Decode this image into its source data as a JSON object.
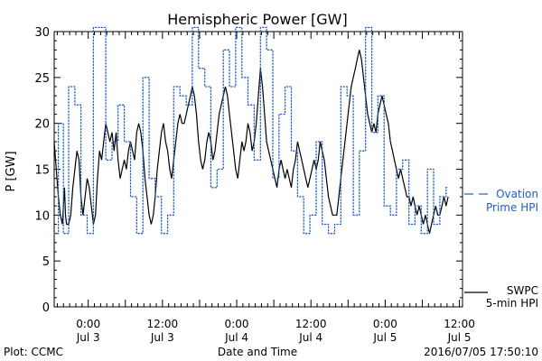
{
  "chart_data": {
    "type": "line",
    "title": "Hemispheric Power [GW]",
    "ylabel": "P [GW]",
    "xlabel": "Date and Time",
    "ylim": [
      0,
      30
    ],
    "xlim": [
      -0.2292,
      2.5208
    ],
    "x_unit": "days from 2016-07-03 00:00",
    "yticks": [
      0,
      5,
      10,
      15,
      20,
      25,
      30
    ],
    "xticks": [
      {
        "x": 0.0,
        "top": "0:00",
        "bottom": "Jul 3"
      },
      {
        "x": 0.5,
        "top": "12:00",
        "bottom": "Jul 3"
      },
      {
        "x": 1.0,
        "top": "0:00",
        "bottom": "Jul 4"
      },
      {
        "x": 1.5,
        "top": "12:00",
        "bottom": "Jul 4"
      },
      {
        "x": 2.0,
        "top": "0:00",
        "bottom": "Jul 5"
      },
      {
        "x": 2.5,
        "top": "12:00",
        "bottom": "Jul 5"
      }
    ],
    "grid": false,
    "series": [
      {
        "name_lines": [
          "SWPC",
          "5-min HPI"
        ],
        "color": "#000000",
        "style": "solid",
        "points": [
          [
            -0.229,
            18
          ],
          [
            -0.215,
            15
          ],
          [
            -0.201,
            12
          ],
          [
            -0.188,
            10
          ],
          [
            -0.174,
            9
          ],
          [
            -0.167,
            11
          ],
          [
            -0.16,
            13
          ],
          [
            -0.153,
            10
          ],
          [
            -0.146,
            9
          ],
          [
            -0.132,
            9
          ],
          [
            -0.118,
            10
          ],
          [
            -0.104,
            13
          ],
          [
            -0.09,
            15
          ],
          [
            -0.076,
            17
          ],
          [
            -0.062,
            16
          ],
          [
            -0.049,
            12
          ],
          [
            -0.035,
            10
          ],
          [
            -0.021,
            12
          ],
          [
            -0.007,
            14
          ],
          [
            0.007,
            13
          ],
          [
            0.021,
            11
          ],
          [
            0.035,
            9
          ],
          [
            0.049,
            10
          ],
          [
            0.062,
            14
          ],
          [
            0.076,
            17
          ],
          [
            0.09,
            16
          ],
          [
            0.104,
            18
          ],
          [
            0.118,
            20
          ],
          [
            0.132,
            19
          ],
          [
            0.146,
            18
          ],
          [
            0.16,
            19
          ],
          [
            0.174,
            17
          ],
          [
            0.188,
            19
          ],
          [
            0.201,
            16
          ],
          [
            0.215,
            14
          ],
          [
            0.229,
            15
          ],
          [
            0.243,
            16
          ],
          [
            0.257,
            15
          ],
          [
            0.271,
            17
          ],
          [
            0.285,
            18
          ],
          [
            0.299,
            17
          ],
          [
            0.312,
            16
          ],
          [
            0.326,
            19
          ],
          [
            0.34,
            20
          ],
          [
            0.354,
            19
          ],
          [
            0.368,
            17
          ],
          [
            0.382,
            14
          ],
          [
            0.396,
            12
          ],
          [
            0.41,
            10
          ],
          [
            0.424,
            9
          ],
          [
            0.438,
            10
          ],
          [
            0.451,
            12
          ],
          [
            0.465,
            15
          ],
          [
            0.479,
            17
          ],
          [
            0.493,
            19
          ],
          [
            0.507,
            20
          ],
          [
            0.521,
            18
          ],
          [
            0.535,
            17
          ],
          [
            0.549,
            15
          ],
          [
            0.562,
            14
          ],
          [
            0.576,
            16
          ],
          [
            0.59,
            18
          ],
          [
            0.604,
            20
          ],
          [
            0.618,
            21
          ],
          [
            0.632,
            20
          ],
          [
            0.646,
            20
          ],
          [
            0.66,
            21
          ],
          [
            0.674,
            22
          ],
          [
            0.688,
            23
          ],
          [
            0.701,
            24
          ],
          [
            0.715,
            23
          ],
          [
            0.729,
            21
          ],
          [
            0.743,
            18
          ],
          [
            0.757,
            16
          ],
          [
            0.771,
            15
          ],
          [
            0.785,
            16
          ],
          [
            0.799,
            18
          ],
          [
            0.812,
            19
          ],
          [
            0.826,
            18
          ],
          [
            0.84,
            16
          ],
          [
            0.854,
            17
          ],
          [
            0.868,
            19
          ],
          [
            0.882,
            21
          ],
          [
            0.896,
            22
          ],
          [
            0.91,
            23
          ],
          [
            0.924,
            24
          ],
          [
            0.938,
            23
          ],
          [
            0.951,
            21
          ],
          [
            0.965,
            19
          ],
          [
            0.979,
            17
          ],
          [
            0.993,
            15
          ],
          [
            1.007,
            14
          ],
          [
            1.021,
            16
          ],
          [
            1.035,
            18
          ],
          [
            1.049,
            17
          ],
          [
            1.062,
            18
          ],
          [
            1.076,
            20
          ],
          [
            1.09,
            19
          ],
          [
            1.104,
            17
          ],
          [
            1.118,
            18
          ],
          [
            1.132,
            20
          ],
          [
            1.146,
            23
          ],
          [
            1.16,
            26
          ],
          [
            1.174,
            24
          ],
          [
            1.188,
            21
          ],
          [
            1.201,
            18
          ],
          [
            1.215,
            17
          ],
          [
            1.229,
            16
          ],
          [
            1.243,
            15
          ],
          [
            1.257,
            14
          ],
          [
            1.271,
            13
          ],
          [
            1.285,
            15
          ],
          [
            1.299,
            16
          ],
          [
            1.312,
            15
          ],
          [
            1.326,
            14
          ],
          [
            1.34,
            15
          ],
          [
            1.354,
            14
          ],
          [
            1.368,
            13
          ],
          [
            1.382,
            15
          ],
          [
            1.396,
            16
          ],
          [
            1.41,
            18
          ],
          [
            1.424,
            17
          ],
          [
            1.438,
            16
          ],
          [
            1.451,
            15
          ],
          [
            1.465,
            14
          ],
          [
            1.479,
            13
          ],
          [
            1.493,
            14
          ],
          [
            1.507,
            15
          ],
          [
            1.521,
            16
          ],
          [
            1.535,
            15
          ],
          [
            1.549,
            16
          ],
          [
            1.562,
            18
          ],
          [
            1.576,
            17
          ],
          [
            1.59,
            16
          ],
          [
            1.604,
            14
          ],
          [
            1.618,
            12
          ],
          [
            1.632,
            11
          ],
          [
            1.646,
            10
          ],
          [
            1.66,
            10
          ],
          [
            1.674,
            10
          ],
          [
            1.688,
            12
          ],
          [
            1.701,
            14
          ],
          [
            1.715,
            16
          ],
          [
            1.729,
            18
          ],
          [
            1.743,
            20
          ],
          [
            1.757,
            22
          ],
          [
            1.771,
            24
          ],
          [
            1.785,
            25
          ],
          [
            1.799,
            26
          ],
          [
            1.812,
            27
          ],
          [
            1.826,
            28
          ],
          [
            1.84,
            27
          ],
          [
            1.854,
            25
          ],
          [
            1.868,
            23
          ],
          [
            1.882,
            21
          ],
          [
            1.896,
            20
          ],
          [
            1.91,
            19
          ],
          [
            1.924,
            20
          ],
          [
            1.938,
            19
          ],
          [
            1.951,
            21
          ],
          [
            1.965,
            22
          ],
          [
            1.979,
            23
          ],
          [
            1.993,
            22
          ],
          [
            2.007,
            21
          ],
          [
            2.021,
            20
          ],
          [
            2.035,
            18
          ],
          [
            2.049,
            17
          ],
          [
            2.062,
            16
          ],
          [
            2.076,
            15
          ],
          [
            2.09,
            14
          ],
          [
            2.104,
            15
          ],
          [
            2.118,
            14
          ],
          [
            2.132,
            13
          ],
          [
            2.146,
            12
          ],
          [
            2.16,
            12
          ],
          [
            2.174,
            11
          ],
          [
            2.188,
            12
          ],
          [
            2.201,
            11
          ],
          [
            2.215,
            10
          ],
          [
            2.229,
            11
          ],
          [
            2.243,
            10
          ],
          [
            2.257,
            9
          ],
          [
            2.271,
            10
          ],
          [
            2.285,
            9
          ],
          [
            2.299,
            8
          ],
          [
            2.312,
            9
          ],
          [
            2.326,
            10
          ],
          [
            2.34,
            11
          ],
          [
            2.354,
            10
          ],
          [
            2.368,
            10
          ],
          [
            2.382,
            11
          ],
          [
            2.396,
            12
          ],
          [
            2.41,
            11
          ],
          [
            2.424,
            12
          ]
        ]
      },
      {
        "name_lines": [
          "Ovation",
          "Prime HPI"
        ],
        "color": "#1f5fbf",
        "style": "dotted-step",
        "points": [
          [
            -0.229,
            8
          ],
          [
            -0.201,
            20
          ],
          [
            -0.167,
            8
          ],
          [
            -0.132,
            24
          ],
          [
            -0.09,
            22
          ],
          [
            -0.049,
            10
          ],
          [
            -0.007,
            8
          ],
          [
            0.035,
            30.5
          ],
          [
            0.076,
            30.5
          ],
          [
            0.118,
            16
          ],
          [
            0.16,
            18
          ],
          [
            0.201,
            22
          ],
          [
            0.243,
            18
          ],
          [
            0.285,
            12
          ],
          [
            0.326,
            8
          ],
          [
            0.368,
            25
          ],
          [
            0.41,
            14
          ],
          [
            0.451,
            12
          ],
          [
            0.493,
            8
          ],
          [
            0.535,
            10
          ],
          [
            0.576,
            24
          ],
          [
            0.618,
            23
          ],
          [
            0.66,
            22
          ],
          [
            0.701,
            30.5
          ],
          [
            0.743,
            26
          ],
          [
            0.785,
            24
          ],
          [
            0.826,
            13
          ],
          [
            0.868,
            15
          ],
          [
            0.91,
            28
          ],
          [
            0.951,
            24
          ],
          [
            0.993,
            30.5
          ],
          [
            1.035,
            25
          ],
          [
            1.076,
            22
          ],
          [
            1.118,
            16
          ],
          [
            1.16,
            30.5
          ],
          [
            1.201,
            28
          ],
          [
            1.243,
            14
          ],
          [
            1.285,
            21
          ],
          [
            1.326,
            24
          ],
          [
            1.368,
            17
          ],
          [
            1.41,
            12
          ],
          [
            1.451,
            8
          ],
          [
            1.493,
            10
          ],
          [
            1.535,
            18
          ],
          [
            1.576,
            9
          ],
          [
            1.618,
            8
          ],
          [
            1.66,
            9
          ],
          [
            1.701,
            24
          ],
          [
            1.743,
            23
          ],
          [
            1.785,
            10
          ],
          [
            1.826,
            17
          ],
          [
            1.868,
            30.5
          ],
          [
            1.91,
            19
          ],
          [
            1.951,
            23
          ],
          [
            1.993,
            11
          ],
          [
            2.035,
            10
          ],
          [
            2.076,
            15
          ],
          [
            2.118,
            16
          ],
          [
            2.16,
            9
          ],
          [
            2.201,
            11
          ],
          [
            2.243,
            8
          ],
          [
            2.285,
            15
          ],
          [
            2.326,
            9
          ],
          [
            2.368,
            12
          ],
          [
            2.41,
            13
          ],
          [
            2.424,
            13
          ]
        ]
      }
    ]
  },
  "footer": {
    "plot_credit": "Plot: CCMC",
    "timestamp": "2016/07/05 17:50:10"
  }
}
